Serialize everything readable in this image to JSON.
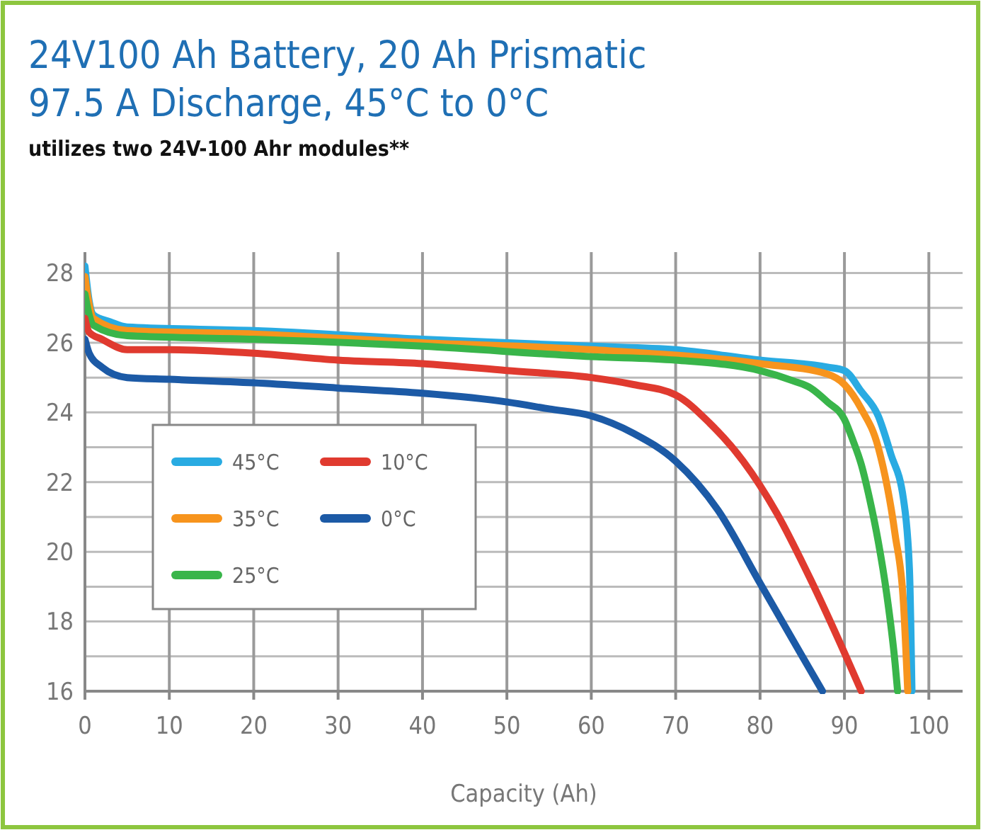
{
  "chart_data": {
    "type": "line",
    "title": "24V100 Ah Battery, 20 Ah Prismatic\n97.5 A Discharge, 45°C to 0°C",
    "subtitle": "utilizes two 24V-100 Ahr modules**",
    "xlabel": "Capacity (Ah)",
    "xlim": [
      0,
      104
    ],
    "xticks": [
      0,
      10,
      20,
      30,
      40,
      50,
      60,
      70,
      80,
      90,
      100
    ],
    "ylim": [
      16,
      28.6
    ],
    "yticks": [
      16,
      {
        "value": 17,
        "label": null
      },
      18,
      {
        "value": 19,
        "label": null
      },
      20,
      {
        "value": 21,
        "label": null
      },
      22,
      {
        "value": 23,
        "label": null
      },
      24,
      {
        "value": 25,
        "label": null
      },
      26,
      {
        "value": 27,
        "label": null
      },
      28
    ],
    "grid": true,
    "legend": "left",
    "marker": "none",
    "line_style": "solid",
    "series": [
      {
        "name": "45°C",
        "color": "#29abe2",
        "x": [
          0,
          0.5,
          1,
          3,
          5,
          20,
          40,
          60,
          70,
          80,
          88,
          90,
          92,
          94,
          95.5,
          97,
          97.7,
          98
        ],
        "values": [
          28.2,
          27.2,
          26.8,
          26.6,
          26.45,
          26.35,
          26.1,
          25.9,
          25.8,
          25.5,
          25.3,
          25.2,
          24.6,
          23.9,
          22.8,
          21.5,
          19.5,
          16
        ]
      },
      {
        "name": "35°C",
        "color": "#f7941d",
        "x": [
          0,
          0.5,
          1,
          5,
          20,
          40,
          60,
          80,
          88,
          90,
          92,
          94,
          96,
          97,
          97.5
        ],
        "values": [
          27.9,
          27.1,
          26.7,
          26.35,
          26.25,
          26.0,
          25.8,
          25.4,
          25.1,
          24.8,
          24.1,
          23.0,
          20.5,
          18.5,
          16
        ]
      },
      {
        "name": "25°C",
        "color": "#39b54a",
        "x": [
          0,
          0.5,
          1,
          5,
          20,
          40,
          60,
          70,
          80,
          84,
          86,
          88,
          90,
          91,
          92,
          93,
          94,
          95,
          96,
          96.3
        ],
        "values": [
          27.4,
          26.8,
          26.5,
          26.2,
          26.1,
          25.9,
          25.6,
          25.5,
          25.2,
          24.9,
          24.7,
          24.3,
          23.8,
          23.2,
          22.5,
          21.5,
          20.3,
          18.8,
          16.8,
          16
        ]
      },
      {
        "name": "10°C",
        "color": "#e03a2f",
        "x": [
          0,
          0.5,
          2,
          5,
          10,
          20,
          30,
          40,
          50,
          60,
          65,
          70,
          74,
          78,
          82,
          86,
          90,
          92
        ],
        "values": [
          26.7,
          26.3,
          26.1,
          25.8,
          25.8,
          25.7,
          25.5,
          25.4,
          25.2,
          25.0,
          24.8,
          24.5,
          23.7,
          22.6,
          21.1,
          19.2,
          17.1,
          16
        ]
      },
      {
        "name": "0°C",
        "color": "#1c5aa6",
        "x": [
          0,
          0.5,
          2,
          5,
          10,
          20,
          30,
          40,
          50,
          55,
          60,
          65,
          70,
          75,
          80,
          85,
          87.4
        ],
        "values": [
          26.1,
          25.7,
          25.3,
          25.0,
          24.95,
          24.85,
          24.7,
          24.55,
          24.3,
          24.1,
          23.9,
          23.4,
          22.6,
          21.2,
          19.1,
          17.0,
          16
        ]
      }
    ]
  }
}
